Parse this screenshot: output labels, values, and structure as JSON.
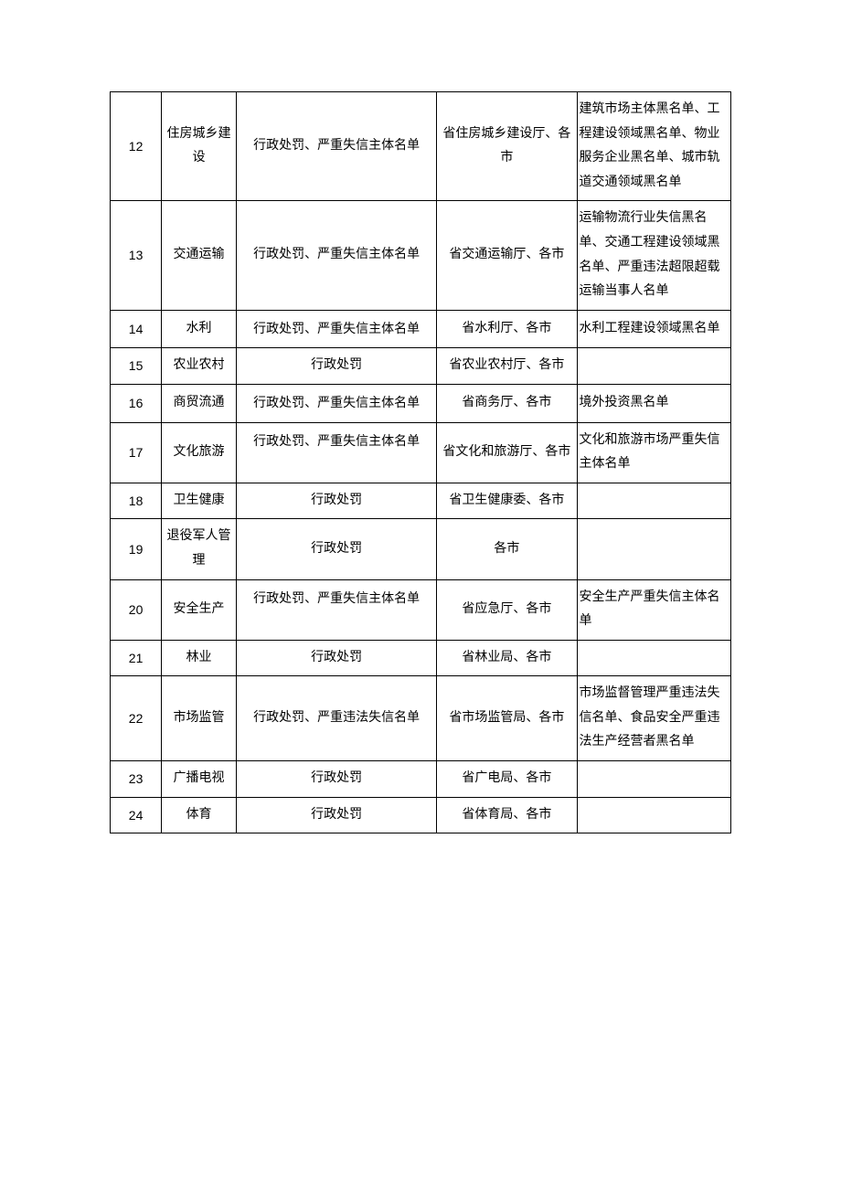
{
  "table": {
    "columns": {
      "num_width": 55,
      "domain_width": 80,
      "content_width": 215,
      "dept_width": 150,
      "notes_width": 165
    },
    "styling": {
      "border_color": "#000000",
      "font_size": 14,
      "line_height": 1.9,
      "text_color": "#000000",
      "background_color": "#ffffff",
      "font_family": "SimSun"
    },
    "rows": [
      {
        "num": "12",
        "domain": "住房城乡建设",
        "content": "行政处罚、严重失信主体名单",
        "dept": "省住房城乡建设厅、各市",
        "notes": "建筑市场主体黑名单、工程建设领域黑名单、物业服务企业黑名单、城市轨道交通领域黑名单",
        "content_valign": "middle"
      },
      {
        "num": "13",
        "domain": "交通运输",
        "content": "行政处罚、严重失信主体名单",
        "dept": "省交通运输厅、各市",
        "notes": "运输物流行业失信黑名单、交通工程建设领域黑名单、严重违法超限超载运输当事人名单",
        "content_valign": "middle"
      },
      {
        "num": "14",
        "domain": "水利",
        "content": "行政处罚、严重失信主体名单",
        "dept": "省水利厅、各市",
        "notes": "水利工程建设领域黑名单",
        "content_valign": "top"
      },
      {
        "num": "15",
        "domain": "农业农村",
        "content": "行政处罚",
        "dept": "省农业农村厅、各市",
        "notes": "",
        "content_valign": "middle"
      },
      {
        "num": "16",
        "domain": "商贸流通",
        "content": "行政处罚、严重失信主体名单",
        "dept": "省商务厅、各市",
        "notes": "境外投资黑名单",
        "content_valign": "top"
      },
      {
        "num": "17",
        "domain": "文化旅游",
        "content": "行政处罚、严重失信主体名单",
        "dept": "省文化和旅游厅、各市",
        "notes": "文化和旅游市场严重失信主体名单",
        "content_valign": "top"
      },
      {
        "num": "18",
        "domain": "卫生健康",
        "content": "行政处罚",
        "dept": "省卫生健康委、各市",
        "notes": "",
        "content_valign": "middle"
      },
      {
        "num": "19",
        "domain": "退役军人管理",
        "content": "行政处罚",
        "dept": "各市",
        "notes": "",
        "content_valign": "middle"
      },
      {
        "num": "20",
        "domain": "安全生产",
        "content": "行政处罚、严重失信主体名单",
        "dept": "省应急厅、各市",
        "notes": "安全生产严重失信主体名单",
        "content_valign": "top"
      },
      {
        "num": "21",
        "domain": "林业",
        "content": "行政处罚",
        "dept": "省林业局、各市",
        "notes": "",
        "content_valign": "middle"
      },
      {
        "num": "22",
        "domain": "市场监管",
        "content": "行政处罚、严重违法失信名单",
        "dept": "省市场监管局、各市",
        "notes": "市场监督管理严重违法失信名单、食品安全严重违法生产经营者黑名单",
        "content_valign": "middle"
      },
      {
        "num": "23",
        "domain": "广播电视",
        "content": "行政处罚",
        "dept": "省广电局、各市",
        "notes": "",
        "content_valign": "middle"
      },
      {
        "num": "24",
        "domain": "体育",
        "content": "行政处罚",
        "dept": "省体育局、各市",
        "notes": "",
        "content_valign": "middle"
      }
    ]
  }
}
